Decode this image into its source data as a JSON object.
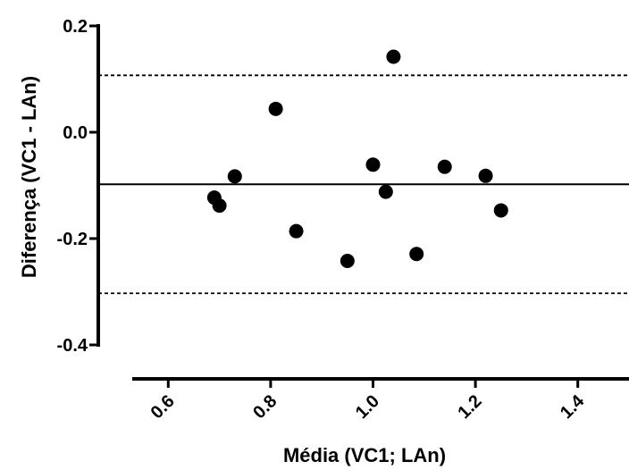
{
  "chart_data": {
    "type": "scatter",
    "title": "",
    "xlabel": "Média (VC1; LAn)",
    "ylabel": "Diferença (VC1 - LAn)",
    "xlim": [
      0.5,
      1.5
    ],
    "ylim": [
      -0.4,
      0.2
    ],
    "x_ticks": [
      "0.6",
      "0.8",
      "1.0",
      "1.2",
      "1.4"
    ],
    "x_tick_values": [
      0.6,
      0.8,
      1.0,
      1.2,
      1.4
    ],
    "y_ticks": [
      "0.2",
      "0.0",
      "-0.2",
      "-0.4"
    ],
    "y_tick_values": [
      0.2,
      0.0,
      -0.2,
      -0.4
    ],
    "reference_lines": [
      {
        "style": "solid",
        "y": -0.098
      },
      {
        "style": "dashed",
        "y": 0.107
      },
      {
        "style": "dashed",
        "y": -0.303
      }
    ],
    "points": [
      {
        "x": 0.69,
        "y": -0.123
      },
      {
        "x": 0.7,
        "y": -0.138
      },
      {
        "x": 0.73,
        "y": -0.083
      },
      {
        "x": 0.81,
        "y": 0.044
      },
      {
        "x": 0.85,
        "y": -0.186
      },
      {
        "x": 0.95,
        "y": -0.242
      },
      {
        "x": 1.0,
        "y": -0.061
      },
      {
        "x": 1.025,
        "y": -0.112
      },
      {
        "x": 1.04,
        "y": 0.142
      },
      {
        "x": 1.085,
        "y": -0.229
      },
      {
        "x": 1.14,
        "y": -0.065
      },
      {
        "x": 1.22,
        "y": -0.082
      },
      {
        "x": 1.25,
        "y": -0.147
      }
    ],
    "grid": false,
    "marker_color": "#000000"
  }
}
